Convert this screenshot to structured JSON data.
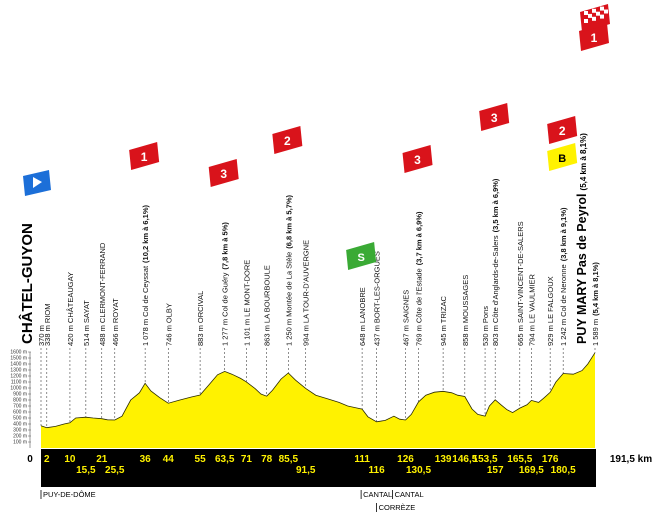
{
  "chart_data": {
    "type": "area",
    "title": "",
    "xlabel": "",
    "ylabel": "",
    "total_distance": "191,5 km",
    "xlim": [
      0,
      191.5
    ],
    "ylim": [
      0,
      1600
    ],
    "y_ticks": [
      "100 m",
      "200 m",
      "300 m",
      "400 m",
      "500 m",
      "600 m",
      "700 m",
      "800 m",
      "900 m",
      "1000 m",
      "1100 m",
      "1200 m",
      "1300 m",
      "1400 m",
      "1500 m",
      "1600 m"
    ],
    "profile": {
      "x": [
        0,
        2,
        5,
        8,
        10,
        12,
        15.5,
        18,
        21,
        23,
        25.5,
        28,
        31,
        34,
        36,
        38,
        41,
        44,
        48,
        52,
        55,
        58,
        61,
        63.5,
        66,
        69,
        71,
        74,
        76,
        78,
        80,
        83,
        85.5,
        88,
        91.5,
        95,
        99,
        103,
        106,
        109,
        111,
        113,
        116,
        119,
        122,
        124,
        126,
        128,
        130.5,
        133,
        136,
        139,
        142,
        144,
        146.5,
        149,
        151,
        153.5,
        155,
        157,
        159,
        161,
        163,
        165.5,
        168,
        169.5,
        172,
        174,
        176,
        178,
        180.5,
        184,
        187,
        189,
        191.5
      ],
      "y": [
        370,
        338,
        360,
        400,
        420,
        500,
        514,
        500,
        488,
        470,
        466,
        530,
        800,
        920,
        1078,
        950,
        840,
        746,
        800,
        850,
        883,
        1050,
        1220,
        1277,
        1230,
        1160,
        1101,
        990,
        900,
        863,
        960,
        1150,
        1250,
        1130,
        994,
        880,
        820,
        760,
        700,
        668,
        648,
        520,
        437,
        460,
        530,
        480,
        467,
        560,
        769,
        880,
        930,
        945,
        920,
        880,
        858,
        650,
        560,
        530,
        700,
        803,
        720,
        640,
        590,
        665,
        720,
        794,
        760,
        840,
        929,
        1100,
        1242,
        1230,
        1290,
        1400,
        1589
      ]
    },
    "distance_labels": [
      "0",
      "2",
      "10",
      "15,5",
      "21",
      "25,5",
      "36",
      "44",
      "55",
      "63,5",
      "71",
      "78",
      "85,5",
      "91,5",
      "111",
      "116",
      "126",
      "130,5",
      "139",
      "146,5",
      "153,5",
      "157",
      "165,5",
      "169,5",
      "176",
      "180,5"
    ],
    "waypoints": [
      {
        "km": 0,
        "alt": 370,
        "label": "370 m",
        "bold": "CHÂTEL-GUYON",
        "name": ""
      },
      {
        "km": 2,
        "alt": 338,
        "label": "338 m RIOM"
      },
      {
        "km": 10,
        "alt": 420,
        "label": "420 m CHÂTEAUGAY"
      },
      {
        "km": 15.5,
        "alt": 514,
        "label": "514 m SAYAT"
      },
      {
        "km": 21,
        "alt": 488,
        "label": "488 m CLERMONT-FERRAND"
      },
      {
        "km": 25.5,
        "alt": 466,
        "label": "466 m ROYAT"
      },
      {
        "km": 36,
        "alt": 1078,
        "label": "1 078 m Col de Ceyssat",
        "climb": "(10,2 km à 6,1%)"
      },
      {
        "km": 44,
        "alt": 746,
        "label": "746 m OLBY"
      },
      {
        "km": 55,
        "alt": 883,
        "label": "883 m ORCIVAL"
      },
      {
        "km": 63.5,
        "alt": 1277,
        "label": "1 277 m Col de Guéry",
        "climb": "(7,8 km à 5%)"
      },
      {
        "km": 71,
        "alt": 1101,
        "label": "1 101 m LE MONT-DORE"
      },
      {
        "km": 78,
        "alt": 863,
        "label": "863 m LA BOURBOULE"
      },
      {
        "km": 85.5,
        "alt": 1250,
        "label": "1 250 m Montée de La Stèle",
        "climb": "(6,8 km à 5,7%)"
      },
      {
        "km": 91.5,
        "alt": 994,
        "label": "994 m LA TOUR-D'AUVERGNE"
      },
      {
        "km": 111,
        "alt": 648,
        "label": "648 m LANOBRE"
      },
      {
        "km": 116,
        "alt": 437,
        "label": "437 m BORT-LES-ORGUES"
      },
      {
        "km": 126,
        "alt": 467,
        "label": "467 m SAIGNES"
      },
      {
        "km": 130.5,
        "alt": 769,
        "label": "769 m Côte de l'Estade",
        "climb": "(3,7 km à 6,9%)"
      },
      {
        "km": 139,
        "alt": 945,
        "label": "945 m TRIZAC"
      },
      {
        "km": 146.5,
        "alt": 858,
        "label": "858 m MOUSSAGES"
      },
      {
        "km": 153.5,
        "alt": 530,
        "label": "530 m Pons"
      },
      {
        "km": 157,
        "alt": 803,
        "label": "803 m Côte d'Anglards-de-Salers",
        "climb": "(3,5 km à 6,9%)"
      },
      {
        "km": 165.5,
        "alt": 665,
        "label": "665 m SAINT-VINCENT-DE-SALERS"
      },
      {
        "km": 169.5,
        "alt": 794,
        "label": "794 m LE VAULMIER"
      },
      {
        "km": 176,
        "alt": 929,
        "label": "929 m LE FALGOUX"
      },
      {
        "km": 180.5,
        "alt": 1242,
        "label": "1 242 m Col de Neronne",
        "climb": "(3,8 km à 9,1%)"
      },
      {
        "km": 191.5,
        "alt": 1589,
        "label": "1 589 m",
        "bold": "PUY MARY Pas de Peyrol",
        "climb": "(5,4 km à 8,1%)"
      }
    ],
    "climb_markers": [
      {
        "km": 36,
        "category": "1",
        "color": "#d9131b"
      },
      {
        "km": 63.5,
        "category": "3",
        "color": "#d9131b"
      },
      {
        "km": 85.5,
        "category": "2",
        "color": "#d9131b"
      },
      {
        "km": 130.5,
        "category": "3",
        "color": "#d9131b"
      },
      {
        "km": 157,
        "category": "3",
        "color": "#d9131b"
      },
      {
        "km": 180.5,
        "category": "2",
        "color": "#d9131b"
      },
      {
        "km": 191.5,
        "category": "1",
        "color": "#d9131b"
      }
    ],
    "bonus_marker": {
      "km": 180.5,
      "label": "B",
      "color": "#fff200"
    },
    "sprint_marker": {
      "km": 111,
      "label": "S",
      "color": "#3aaa35"
    },
    "departments": [
      {
        "km": 0,
        "label": "PUY-DE-DÔME"
      },
      {
        "km": 111,
        "label": "CANTAL"
      },
      {
        "km": 116,
        "label": "CANTAL"
      },
      {
        "km": 116,
        "label": "CORRÈZE"
      }
    ],
    "colors": {
      "profile_fill": "#fff200",
      "profile_stroke": "#2b2b00",
      "band": "#000000",
      "band_text": "#fff200",
      "start_flag": "#1c6fd8"
    }
  }
}
